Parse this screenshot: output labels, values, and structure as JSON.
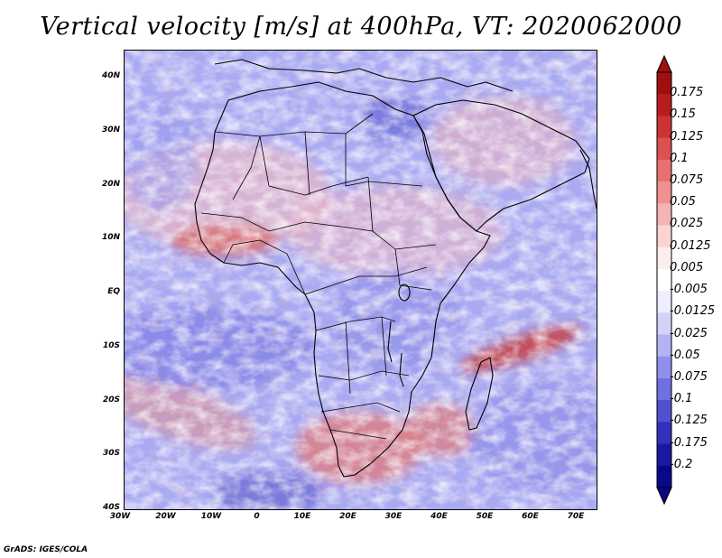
{
  "title": "Vertical velocity [m/s] at 400hPa, VT: 2020062000",
  "credit": "GrADS: IGES/COLA",
  "map": {
    "region": "Africa",
    "projection": "latlon",
    "lon_range": [
      -30,
      75
    ],
    "lat_range": [
      -40,
      45
    ],
    "field": "vertical velocity",
    "level": "400hPa",
    "valid_time": "2020062000"
  },
  "lat_ticks": [
    "40N",
    "30N",
    "20N",
    "10N",
    "EQ",
    "10S",
    "20S",
    "30S",
    "40S"
  ],
  "lon_ticks": [
    "30W",
    "20W",
    "10W",
    "0",
    "10E",
    "20E",
    "30E",
    "40E",
    "50E",
    "60E",
    "70E"
  ],
  "colorbar": {
    "labels": [
      "0.175",
      "0.15",
      "0.125",
      "0.1",
      "0.075",
      "0.05",
      "0.025",
      "0.0125",
      "0.005",
      "-0.005",
      "-0.0125",
      "-0.025",
      "-0.05",
      "-0.075",
      "-0.1",
      "-0.125",
      "-0.175",
      "-0.2"
    ],
    "colors": [
      "#a01010",
      "#b81c1c",
      "#cc3333",
      "#dd5050",
      "#e87070",
      "#f09090",
      "#f6b3b3",
      "#fbd3d3",
      "#fdeeee",
      "#ffffff",
      "#eeeeff",
      "#d3d3fa",
      "#b3b3f4",
      "#9090ec",
      "#7070e0",
      "#5050d0",
      "#3030bb",
      "#1818a0",
      "#08088a"
    ]
  }
}
